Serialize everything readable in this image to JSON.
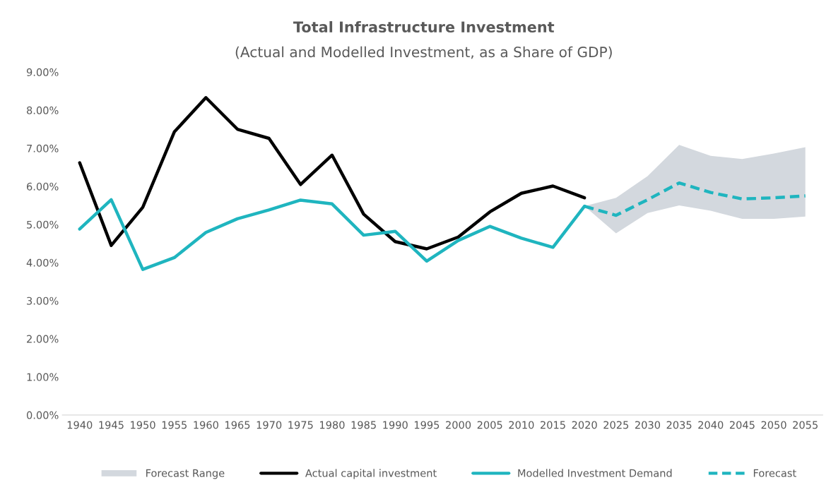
{
  "chart_data": {
    "type": "line",
    "title": "Total Infrastructure Investment",
    "subtitle": "(Actual and Modelled Investment, as a Share of GDP)",
    "categories": [
      "1940",
      "1945",
      "1950",
      "1955",
      "1960",
      "1965",
      "1970",
      "1975",
      "1980",
      "1985",
      "1990",
      "1995",
      "2000",
      "2005",
      "2010",
      "2015",
      "2020",
      "2025",
      "2030",
      "2035",
      "2040",
      "2045",
      "2050",
      "2055"
    ],
    "series": [
      {
        "name": "Forecast Range",
        "type": "area",
        "color": "#d3d8de",
        "values": [
          null,
          null,
          null,
          null,
          null,
          null,
          null,
          null,
          null,
          null,
          null,
          null,
          null,
          null,
          null,
          null,
          null,
          null,
          null,
          null,
          null,
          null,
          null,
          null
        ]
      },
      {
        "name": "Actual capital investment",
        "type": "line",
        "color": "#000000",
        "line_style": "solid",
        "values": [
          6.62,
          4.45,
          5.45,
          7.43,
          8.33,
          7.5,
          7.26,
          6.05,
          6.82,
          5.27,
          4.55,
          4.36,
          4.67,
          5.33,
          5.82,
          6.01,
          5.7,
          null,
          null,
          null,
          null,
          null,
          null,
          null
        ]
      },
      {
        "name": "Modelled Investment Demand",
        "type": "line",
        "color": "#1fb5bf",
        "line_style": "solid",
        "values": [
          4.88,
          5.65,
          3.82,
          4.13,
          4.79,
          5.15,
          5.38,
          5.64,
          5.54,
          4.72,
          4.82,
          4.04,
          4.58,
          4.95,
          4.64,
          4.4,
          5.48,
          null,
          null,
          null,
          null,
          null,
          null,
          null
        ]
      },
      {
        "name": "Forecast",
        "type": "line",
        "color": "#1fb5bf",
        "line_style": "dashed",
        "values": [
          null,
          null,
          null,
          null,
          null,
          null,
          null,
          null,
          null,
          null,
          null,
          null,
          null,
          null,
          null,
          null,
          5.48,
          5.24,
          5.65,
          6.09,
          5.84,
          5.67,
          5.7,
          5.75
        ],
        "lower": [
          null,
          null,
          null,
          null,
          null,
          null,
          null,
          null,
          null,
          null,
          null,
          null,
          null,
          null,
          null,
          null,
          5.48,
          4.77,
          5.3,
          5.5,
          5.36,
          5.15,
          5.15,
          5.21
        ],
        "upper": [
          null,
          null,
          null,
          null,
          null,
          null,
          null,
          null,
          null,
          null,
          null,
          null,
          null,
          null,
          null,
          null,
          5.48,
          5.7,
          6.27,
          7.09,
          6.8,
          6.72,
          6.86,
          7.03
        ]
      }
    ],
    "ylim": [
      0,
      9
    ],
    "yticks": [
      {
        "value": 0,
        "label": "0.00%"
      },
      {
        "value": 1,
        "label": "1.00%"
      },
      {
        "value": 2,
        "label": "2.00%"
      },
      {
        "value": 3,
        "label": "3.00%"
      },
      {
        "value": 4,
        "label": "4.00%"
      },
      {
        "value": 5,
        "label": "5.00%"
      },
      {
        "value": 6,
        "label": "6.00%"
      },
      {
        "value": 7,
        "label": "7.00%"
      },
      {
        "value": 8,
        "label": "8.00%"
      },
      {
        "value": 9,
        "label": "9.00%"
      }
    ],
    "grid": false,
    "legend": "bottom"
  }
}
